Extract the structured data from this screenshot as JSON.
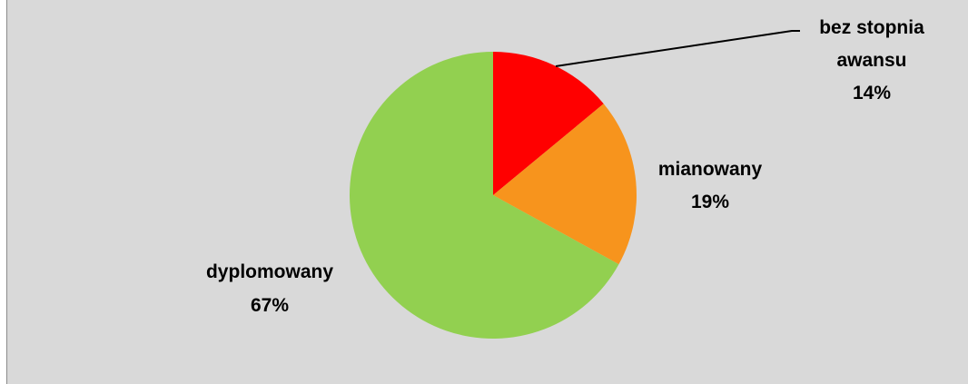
{
  "chart_data": {
    "type": "pie",
    "slices": [
      {
        "label_lines": [
          "bez stopnia",
          "awansu"
        ],
        "percent_text": "14%",
        "value": 14,
        "color": "#ff0000"
      },
      {
        "label_lines": [
          "mianowany"
        ],
        "percent_text": "19%",
        "value": 19,
        "color": "#f7941d"
      },
      {
        "label_lines": [
          "dyplomowany"
        ],
        "percent_text": "67%",
        "value": 67,
        "color": "#92d050"
      }
    ],
    "start_angle_deg": 0,
    "direction": "clockwise",
    "legend": "none"
  }
}
